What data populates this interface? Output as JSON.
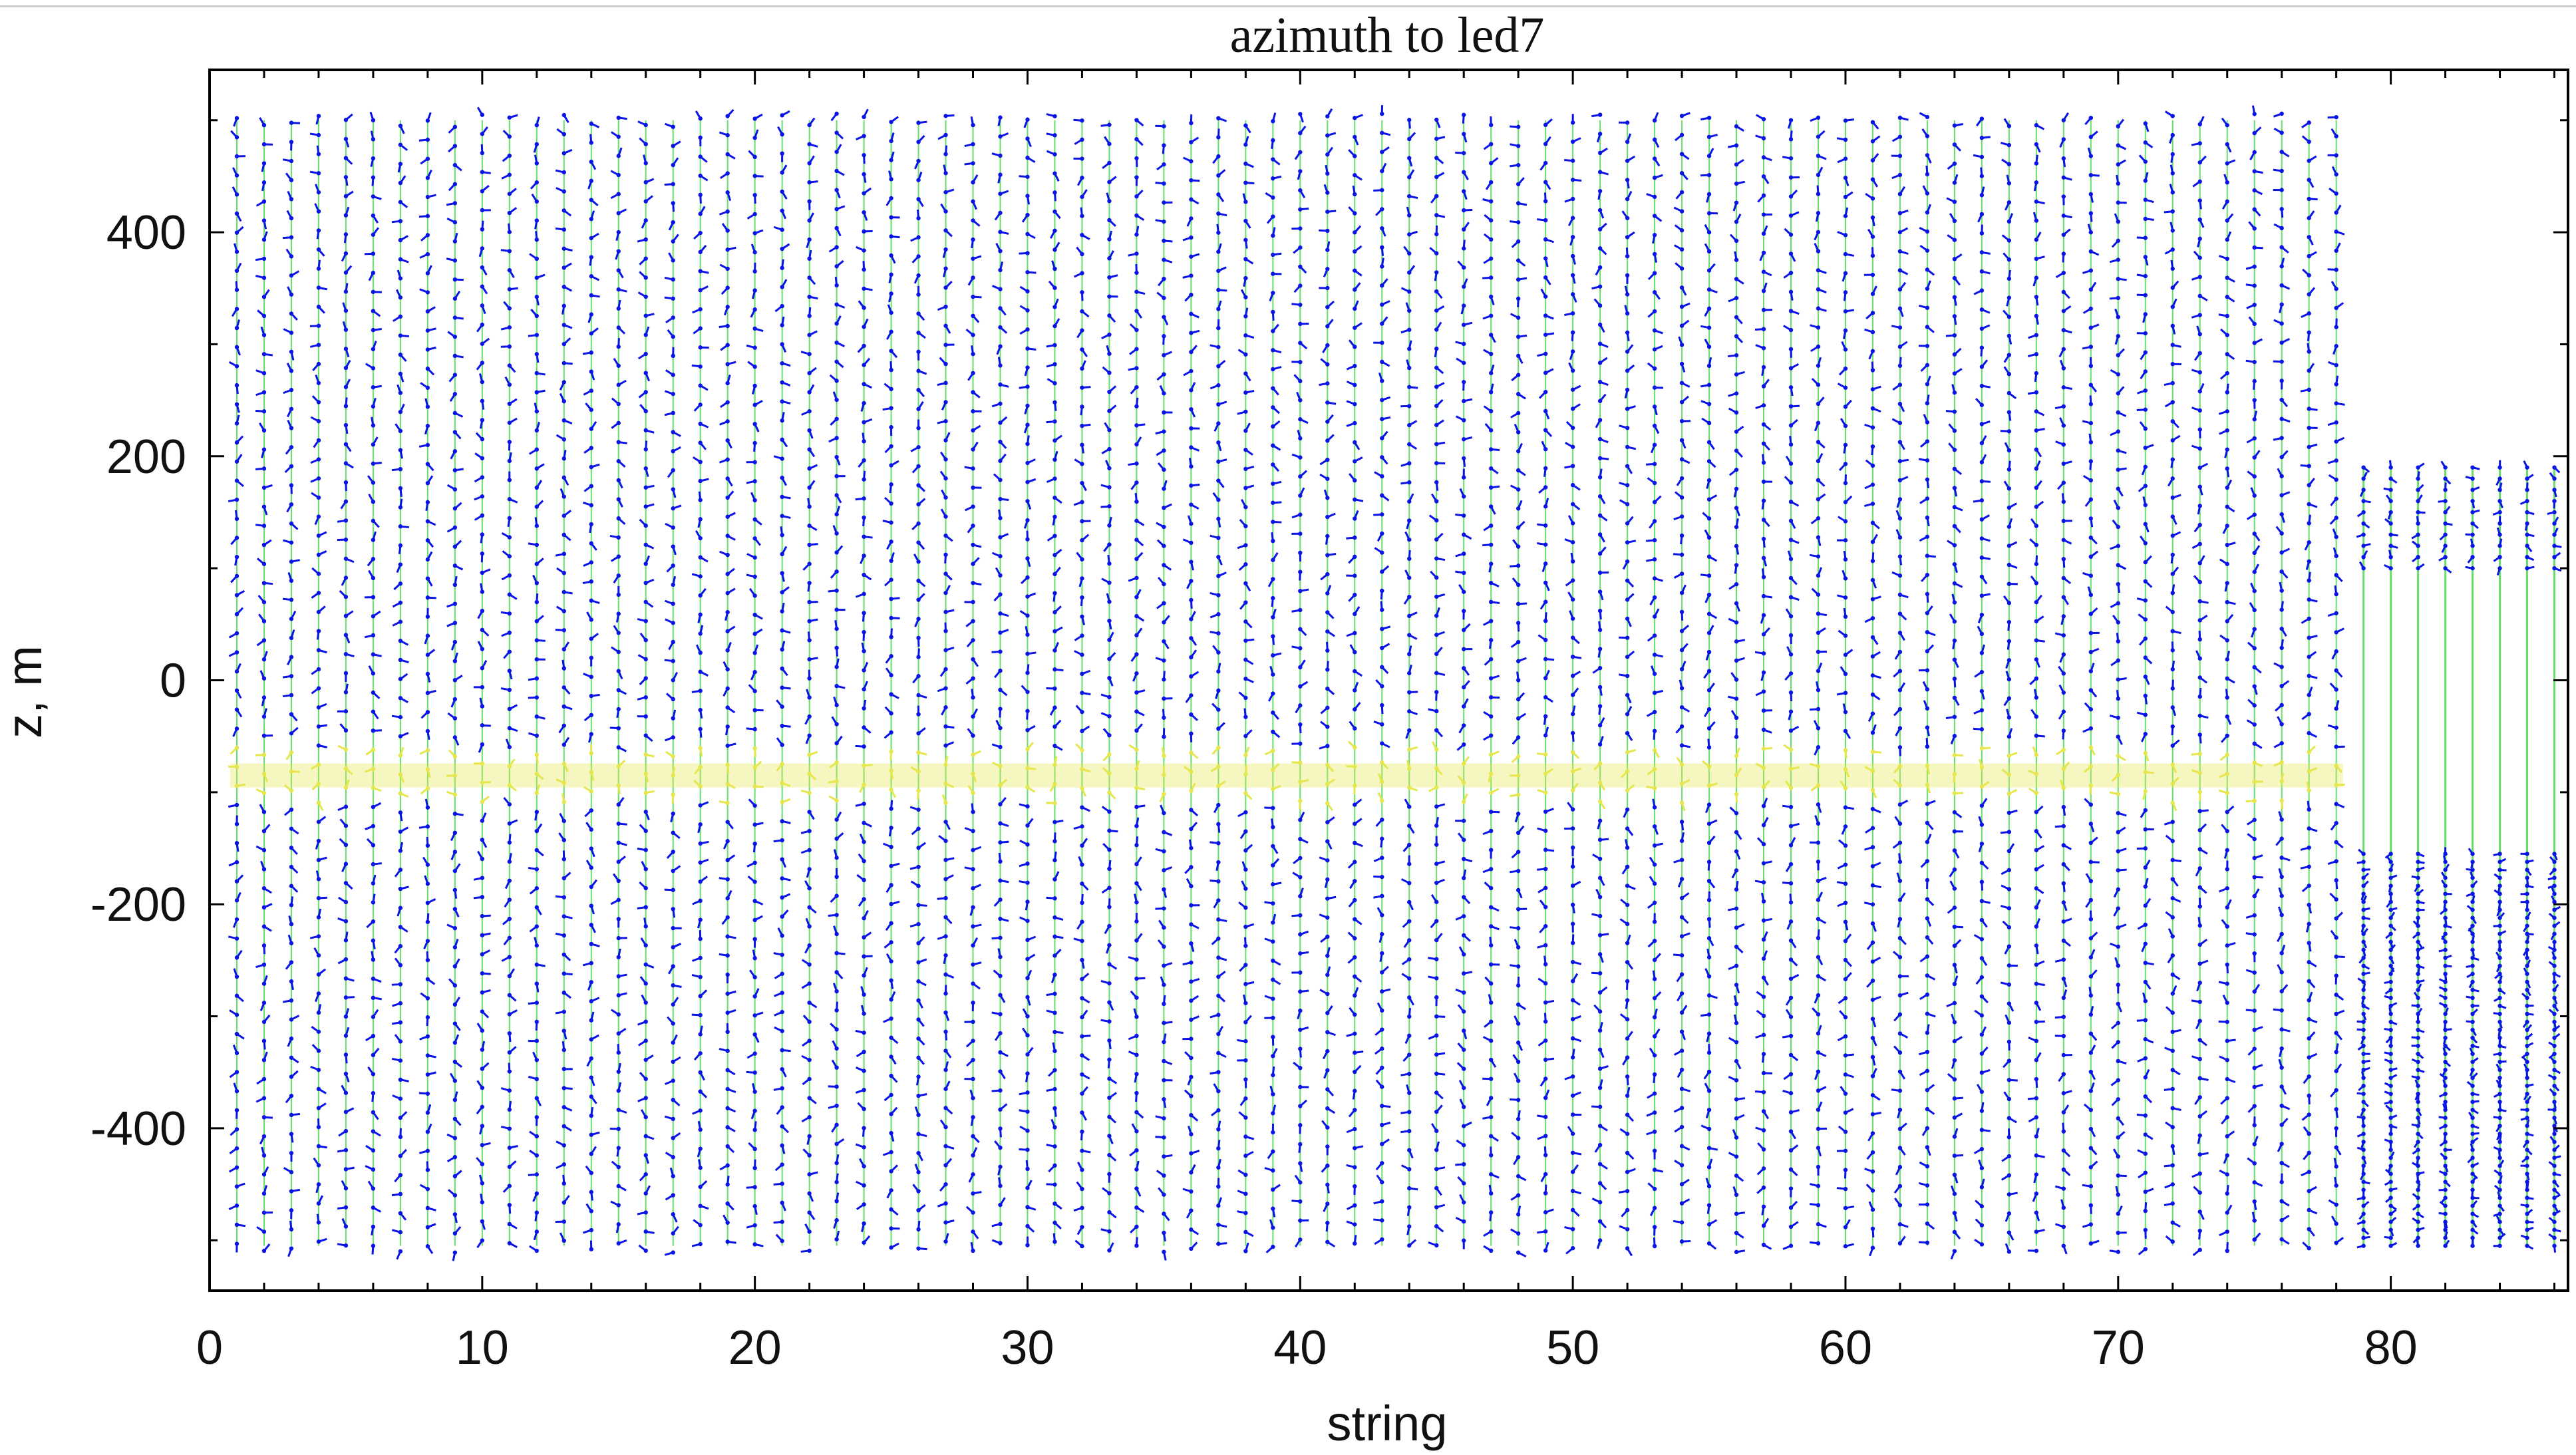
{
  "chart_data": {
    "type": "scatter",
    "title": "azimuth to led7",
    "xlabel": "string",
    "ylabel": "z, m",
    "xlim": [
      0,
      86.5
    ],
    "ylim": [
      -545,
      545
    ],
    "x_ticks": [
      0,
      10,
      20,
      30,
      40,
      50,
      60,
      70,
      80
    ],
    "y_ticks": [
      400,
      200,
      0,
      -200,
      -400
    ],
    "x_tick_labels": [
      "0",
      "10",
      "20",
      "30",
      "40",
      "50",
      "60",
      "70",
      "80"
    ],
    "y_tick_labels": [
      "400",
      "200",
      "0",
      "-200",
      "-400"
    ],
    "grid": false,
    "legend": "none",
    "standard_strings": {
      "first": 1,
      "last": 78,
      "z_top": 500,
      "z_bottom": -505,
      "doms_per_string": 60
    },
    "deepcore_strings": {
      "first": 79,
      "last": 86,
      "upper_z_top": 190,
      "upper_z_bottom": 100,
      "upper_doms": 10,
      "lower_z_top": -155,
      "lower_z_bottom": -505,
      "lower_doms": 50
    },
    "dust_layer_z": -85,
    "colors": {
      "marker": "#0a14e6",
      "string_line": "#66e066",
      "dust_band": "#e6e64d",
      "frame": "#000000"
    },
    "markers": "small blue dot-and-dash azimuth glyphs, one per DOM along each string"
  }
}
